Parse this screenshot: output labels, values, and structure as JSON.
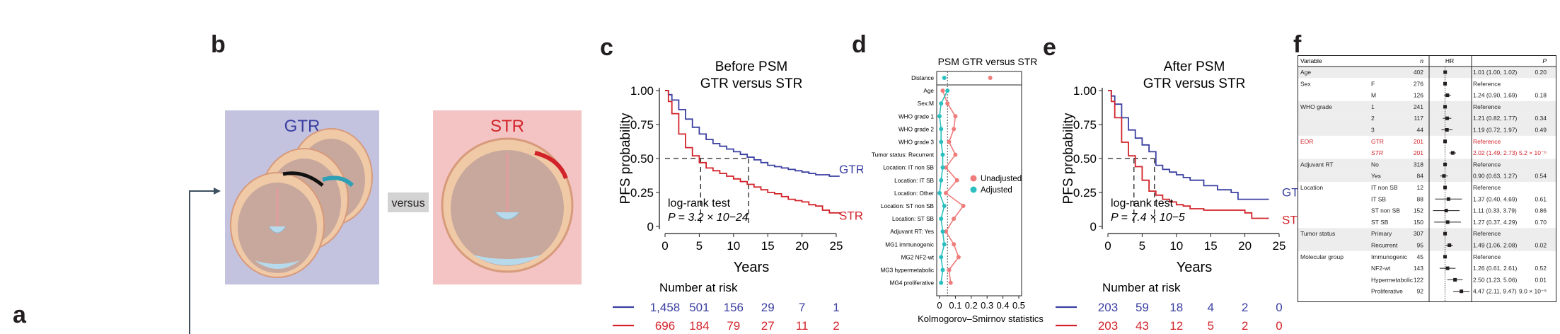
{
  "panels": {
    "a": "a",
    "b": "b",
    "c": "c",
    "d": "d",
    "e": "e",
    "f": "f"
  },
  "panel_b": {
    "gtr_label": "GTR",
    "str_label": "STR",
    "versus": "versus",
    "colors": {
      "gtr_bg": "#c3c3e0",
      "gtr_text": "#3a3fa0",
      "str_bg": "#f3c4c3",
      "str_text": "#d2232a"
    }
  },
  "chart_data": [
    {
      "type": "line",
      "panel": "c",
      "title": "Before PSM",
      "subtitle": "GTR versus STR",
      "xlabel": "Years",
      "ylabel": "PFS probability",
      "xlim": [
        0,
        25
      ],
      "ylim": [
        0,
        1
      ],
      "xticks": [
        "0",
        "5",
        "10",
        "15",
        "20",
        "25"
      ],
      "yticks": [
        "0",
        "0.25",
        "0.50",
        "0.75",
        "1.00"
      ],
      "median_line_y": 0.5,
      "medians": [
        5.2,
        12.2
      ],
      "test_label": "log-rank test",
      "p_label": "P = 3.2 × 10−24",
      "series": [
        {
          "name": "GTR",
          "color": "#3a3fa0",
          "end_label": "GTR",
          "x": [
            0,
            0.5,
            1,
            2,
            3,
            4,
            5,
            6,
            7,
            8,
            9,
            10,
            11,
            12,
            13,
            14,
            15,
            16,
            17,
            18,
            19,
            20,
            21,
            22,
            23,
            24,
            25.5
          ],
          "y": [
            1.0,
            0.97,
            0.93,
            0.86,
            0.79,
            0.73,
            0.68,
            0.64,
            0.61,
            0.59,
            0.57,
            0.55,
            0.53,
            0.51,
            0.49,
            0.47,
            0.45,
            0.44,
            0.43,
            0.42,
            0.41,
            0.4,
            0.39,
            0.38,
            0.38,
            0.37,
            0.37
          ]
        },
        {
          "name": "STR",
          "color": "#d2232a",
          "end_label": "STR",
          "x": [
            0,
            0.5,
            1,
            2,
            3,
            4,
            5,
            6,
            7,
            8,
            9,
            10,
            11,
            12,
            13,
            14,
            15,
            16,
            17,
            18,
            19,
            20,
            21,
            22,
            23,
            24,
            25.5
          ],
          "y": [
            1.0,
            0.92,
            0.83,
            0.68,
            0.58,
            0.52,
            0.47,
            0.43,
            0.41,
            0.39,
            0.37,
            0.35,
            0.33,
            0.31,
            0.29,
            0.27,
            0.25,
            0.24,
            0.22,
            0.2,
            0.19,
            0.18,
            0.16,
            0.15,
            0.12,
            0.1,
            0.09
          ]
        }
      ],
      "risk_table": {
        "title": "Number at risk",
        "rows": [
          {
            "color": "#3a3fa0",
            "values": [
              "1,458",
              "501",
              "156",
              "29",
              "7",
              "1"
            ]
          },
          {
            "color": "#d2232a",
            "values": [
              "696",
              "184",
              "79",
              "27",
              "11",
              "2"
            ]
          }
        ]
      }
    },
    {
      "type": "scatter",
      "panel": "d",
      "title": "PSM GTR versus STR",
      "xlabel": "Kolmogorov–Smirnov statistics",
      "xlim": [
        0,
        0.5
      ],
      "xticks": [
        "0",
        "0.1",
        "0.2",
        "0.3",
        "0.4",
        "0.5"
      ],
      "categories": [
        "Distance",
        "Age",
        "Sex:M",
        "WHO grade 1",
        "WHO grade 2",
        "WHO grade 3",
        "Tumor status: Recurrent",
        "Location: IT non SB",
        "Location: IT SB",
        "Location: Other",
        "Location: ST non SB",
        "Location: ST SB",
        "Adjuvant RT: Yes",
        "MG1 immunogenic",
        "MG2 NF2-wt",
        "MG3 hypermetabolic",
        "MG4 proliferative"
      ],
      "series": [
        {
          "name": "Unadjusted",
          "color": "#f07b7b",
          "values": [
            0.32,
            0.02,
            0.05,
            0.1,
            0.09,
            0.06,
            0.1,
            0.04,
            0.11,
            0.04,
            0.15,
            0.09,
            0.04,
            0.09,
            0.12,
            0.06,
            0.07
          ]
        },
        {
          "name": "Adjusted",
          "color": "#2bbfbf",
          "values": [
            0.03,
            0.05,
            0.01,
            0.0,
            0.01,
            0.01,
            0.02,
            0.02,
            0.01,
            0.0,
            0.03,
            0.01,
            0.02,
            0.03,
            0.01,
            0.02,
            0.01
          ]
        }
      ]
    },
    {
      "type": "line",
      "panel": "e",
      "title": "After PSM",
      "subtitle": "GTR versus STR",
      "xlabel": "Years",
      "ylabel": "PFS probability",
      "xlim": [
        0,
        25
      ],
      "ylim": [
        0,
        1
      ],
      "xticks": [
        "0",
        "5",
        "10",
        "15",
        "20",
        "25"
      ],
      "yticks": [
        "0",
        "0.25",
        "0.50",
        "0.75",
        "1.00"
      ],
      "median_line_y": 0.5,
      "medians": [
        3.8,
        6.8
      ],
      "test_label": "log-rank test",
      "p_label": "P = 7.4 × 10−5",
      "series": [
        {
          "name": "GTR",
          "color": "#3a3fa0",
          "end_label": "GTR",
          "x": [
            0,
            0.5,
            1,
            2,
            3,
            4,
            5,
            6,
            7,
            8,
            9,
            10,
            11,
            12,
            14,
            16,
            18,
            19,
            20,
            21,
            22,
            23.5
          ],
          "y": [
            1.0,
            0.96,
            0.9,
            0.8,
            0.71,
            0.65,
            0.6,
            0.55,
            0.45,
            0.42,
            0.4,
            0.38,
            0.36,
            0.34,
            0.3,
            0.27,
            0.25,
            0.2,
            0.2,
            0.2,
            0.2,
            0.2
          ]
        },
        {
          "name": "STR",
          "color": "#d2232a",
          "end_label": "STR",
          "x": [
            0,
            0.5,
            1,
            2,
            3,
            4,
            5,
            6,
            7,
            8,
            9,
            10,
            11,
            12,
            14,
            16,
            18,
            19,
            20,
            21,
            22,
            23.5
          ],
          "y": [
            1.0,
            0.92,
            0.8,
            0.62,
            0.52,
            0.44,
            0.34,
            0.26,
            0.23,
            0.2,
            0.18,
            0.16,
            0.15,
            0.13,
            0.12,
            0.12,
            0.12,
            0.12,
            0.1,
            0.06,
            0.06,
            0.06
          ]
        }
      ],
      "risk_table": {
        "title": "Number at risk",
        "rows": [
          {
            "color": "#3a3fa0",
            "values": [
              "203",
              "59",
              "18",
              "4",
              "2",
              "0"
            ]
          },
          {
            "color": "#d2232a",
            "values": [
              "203",
              "43",
              "12",
              "5",
              "2",
              "0"
            ]
          }
        ]
      }
    },
    {
      "type": "table",
      "panel": "f",
      "headers": {
        "variable": "Variable",
        "n": "n",
        "hr": "HR",
        "ci": "",
        "p": "P"
      },
      "rows": [
        {
          "group": "Age",
          "sub": "",
          "n": "402",
          "hr": 1.01,
          "lo": 1.0,
          "hi": 1.02,
          "ci": "1.01 (1.00, 1.02)",
          "p": "0.20",
          "shade": true,
          "red": false
        },
        {
          "group": "Sex",
          "sub": "F",
          "n": "276",
          "hr": null,
          "ci": "Reference",
          "p": "",
          "shade": false,
          "red": false
        },
        {
          "group": "",
          "sub": "M",
          "n": "126",
          "hr": 1.24,
          "lo": 0.9,
          "hi": 1.69,
          "ci": "1.24 (0.90, 1.69)",
          "p": "0.18",
          "shade": false,
          "red": false
        },
        {
          "group": "WHO grade",
          "sub": "1",
          "n": "241",
          "hr": null,
          "ci": "Reference",
          "p": "",
          "shade": true,
          "red": false
        },
        {
          "group": "",
          "sub": "2",
          "n": "117",
          "hr": 1.21,
          "lo": 0.82,
          "hi": 1.77,
          "ci": "1.21 (0.82, 1.77)",
          "p": "0.34",
          "shade": true,
          "red": false
        },
        {
          "group": "",
          "sub": "3",
          "n": "44",
          "hr": 1.19,
          "lo": 0.72,
          "hi": 1.97,
          "ci": "1.19 (0.72, 1.97)",
          "p": "0.49",
          "shade": true,
          "red": false
        },
        {
          "group": "EOR",
          "sub": "GTR",
          "n": "201",
          "hr": null,
          "ci": "Reference",
          "p": "",
          "shade": false,
          "red": true
        },
        {
          "group": "",
          "sub": "STR",
          "n": "201",
          "hr": 2.02,
          "lo": 1.49,
          "hi": 2.73,
          "ci": "2.02 (1.49, 2.73)",
          "p": "5.2 × 10⁻⁶",
          "shade": false,
          "red": true
        },
        {
          "group": "Adjuvant RT",
          "sub": "No",
          "n": "318",
          "hr": null,
          "ci": "Reference",
          "p": "",
          "shade": true,
          "red": false
        },
        {
          "group": "",
          "sub": "Yes",
          "n": "84",
          "hr": 0.9,
          "lo": 0.63,
          "hi": 1.27,
          "ci": "0.90 (0.63, 1.27)",
          "p": "0.54",
          "shade": true,
          "red": false
        },
        {
          "group": "Location",
          "sub": "IT non SB",
          "n": "12",
          "hr": null,
          "ci": "Reference",
          "p": "",
          "shade": false,
          "red": false
        },
        {
          "group": "",
          "sub": "IT SB",
          "n": "88",
          "hr": 1.37,
          "lo": 0.4,
          "hi": 4.69,
          "ci": "1.37 (0.40, 4.69)",
          "p": "0.61",
          "shade": false,
          "red": false
        },
        {
          "group": "",
          "sub": "ST non SB",
          "n": "152",
          "hr": 1.11,
          "lo": 0.33,
          "hi": 3.79,
          "ci": "1.11 (0.33, 3.79)",
          "p": "0.86",
          "shade": false,
          "red": false
        },
        {
          "group": "",
          "sub": "ST SB",
          "n": "150",
          "hr": 1.27,
          "lo": 0.37,
          "hi": 4.29,
          "ci": "1.27 (0.37, 4.29)",
          "p": "0.70",
          "shade": false,
          "red": false
        },
        {
          "group": "Tumor status",
          "sub": "Primary",
          "n": "307",
          "hr": null,
          "ci": "Reference",
          "p": "",
          "shade": true,
          "red": false
        },
        {
          "group": "",
          "sub": "Recurrent",
          "n": "95",
          "hr": 1.49,
          "lo": 1.06,
          "hi": 2.08,
          "ci": "1.49 (1.06, 2.08)",
          "p": "0.02",
          "shade": true,
          "red": false
        },
        {
          "group": "Molecular group",
          "sub": "Immunogenic",
          "n": "45",
          "hr": null,
          "ci": "Reference",
          "p": "",
          "shade": false,
          "red": false
        },
        {
          "group": "",
          "sub": "NF2-wt",
          "n": "143",
          "hr": 1.26,
          "lo": 0.61,
          "hi": 2.61,
          "ci": "1.26 (0.61, 2.61)",
          "p": "0.52",
          "shade": false,
          "red": false
        },
        {
          "group": "",
          "sub": "Hypermetabolic",
          "n": "122",
          "hr": 2.5,
          "lo": 1.23,
          "hi": 5.06,
          "ci": "2.50 (1.23, 5.06)",
          "p": "0.01",
          "shade": false,
          "red": false
        },
        {
          "group": "",
          "sub": "Proliferative",
          "n": "92",
          "hr": 4.47,
          "lo": 2.11,
          "hi": 9.47,
          "ci": "4.47 (2.11, 9.47)",
          "p": "9.0 × 10⁻⁵",
          "shade": false,
          "red": false
        }
      ]
    }
  ]
}
